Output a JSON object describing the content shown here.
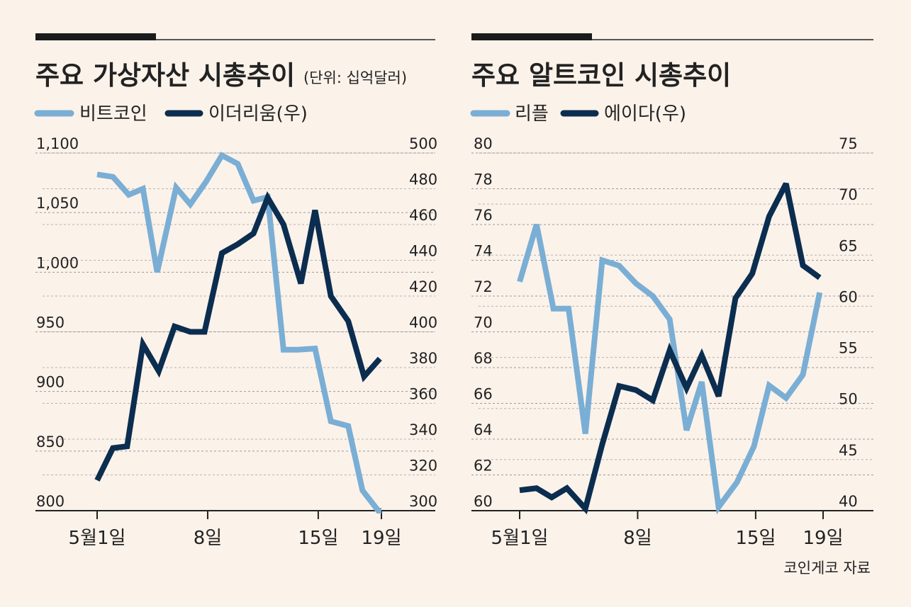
{
  "source": "코인게코 자료",
  "colors": {
    "light": "#7aaed4",
    "dark": "#0b2d4f",
    "grid": "#9a9a9a",
    "text": "#222222",
    "background": "#fbf2ea"
  },
  "chart_data": [
    {
      "type": "line",
      "title": "주요 가상자산 시총추이",
      "unit_note": "(단위: 십억달러)",
      "x_tick_labels": [
        "5월1일",
        "8일",
        "15일",
        "19일"
      ],
      "x_tick_days": [
        1,
        8,
        15,
        19
      ],
      "x_range": [
        1,
        19
      ],
      "left_axis": {
        "ylim": [
          800,
          1100
        ],
        "ticks": [
          "1,100",
          "1,050",
          "1,000",
          "950",
          "900",
          "850",
          "800"
        ]
      },
      "right_axis": {
        "ylim": [
          300,
          500
        ],
        "ticks": [
          "500",
          "480",
          "460",
          "440",
          "420",
          "400",
          "380",
          "360",
          "340",
          "320",
          "300"
        ]
      },
      "series": [
        {
          "name": "비트코인",
          "axis": "left",
          "color": "#7aaed4",
          "x": [
            1,
            2,
            3,
            3.9,
            4.8,
            6,
            6.9,
            7.9,
            8.9,
            9.9,
            10.9,
            11.8,
            12.8,
            13.7,
            14.8,
            15.8,
            16.9,
            17.8,
            18.8,
            19
          ],
          "values": [
            1082,
            1080,
            1065,
            1070,
            1000,
            1071,
            1057,
            1076,
            1098,
            1091,
            1060,
            1063,
            935,
            935,
            936,
            875,
            871,
            817,
            800,
            800
          ]
        },
        {
          "name": "이더리움(우)",
          "axis": "right",
          "color": "#0b2d4f",
          "x": [
            1,
            2,
            2.9,
            3.9,
            4.9,
            5.9,
            6.9,
            7.8,
            8.9,
            9.9,
            10.9,
            11.8,
            12.8,
            13.9,
            14.8,
            15.8,
            16.9,
            17.9,
            18.9
          ],
          "values": [
            317,
            335,
            336,
            393,
            378,
            403,
            400,
            400,
            444,
            449,
            455,
            475,
            460,
            427,
            468,
            420,
            406,
            375,
            385
          ]
        }
      ]
    },
    {
      "type": "line",
      "title": "주요 알트코인 시총추이",
      "x_tick_labels": [
        "5월1일",
        "8일",
        "15일",
        "19일"
      ],
      "x_tick_days": [
        1,
        8,
        15,
        19
      ],
      "x_range": [
        1,
        19
      ],
      "left_axis": {
        "ylim": [
          60,
          80
        ],
        "ticks": [
          "80",
          "78",
          "76",
          "74",
          "72",
          "70",
          "68",
          "66",
          "64",
          "62",
          "60"
        ]
      },
      "right_axis": {
        "ylim": [
          40,
          75
        ],
        "ticks": [
          "75",
          "70",
          "65",
          "60",
          "55",
          "50",
          "45",
          "40"
        ]
      },
      "series": [
        {
          "name": "리플",
          "axis": "left",
          "color": "#7aaed4",
          "x": [
            1,
            2,
            3,
            3.9,
            4.9,
            5.9,
            6.9,
            7.9,
            8.9,
            9.9,
            10.9,
            11.8,
            12.8,
            13.9,
            14.9,
            15.8,
            16.8,
            17.8,
            18.8
          ],
          "values": [
            72.8,
            76,
            71.3,
            71.3,
            64.3,
            74,
            73.7,
            72.7,
            72,
            70.7,
            64.5,
            67.2,
            60.2,
            61.6,
            63.6,
            67,
            66.3,
            67.6,
            72.2
          ]
        },
        {
          "name": "에이다(우)",
          "axis": "right",
          "color": "#0b2d4f",
          "x": [
            1,
            2,
            2.9,
            3.8,
            4.9,
            5.9,
            6.9,
            7.9,
            8.9,
            9.9,
            10.9,
            11.8,
            12.8,
            13.8,
            14.8,
            15.8,
            16.8,
            17.8,
            18.8
          ],
          "values": [
            42,
            42.2,
            41.3,
            42.2,
            40.2,
            46.5,
            52.2,
            51.8,
            50.8,
            55.7,
            52,
            55.2,
            51.2,
            60.8,
            63.2,
            68.8,
            72,
            64,
            62.8
          ]
        }
      ]
    }
  ]
}
